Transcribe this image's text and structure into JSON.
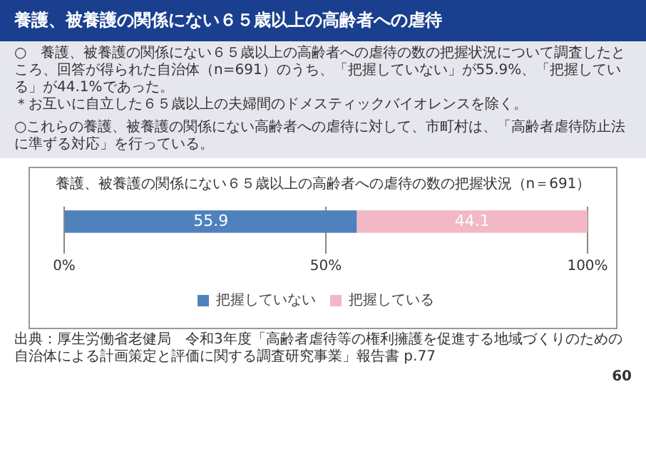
{
  "chart_data": {
    "type": "bar",
    "orientation": "horizontal",
    "stacked": true,
    "title": "養護、被養護の関係にない６５歳以上の高齢者への虐待の数の把握状況（n＝691）",
    "categories": [
      null
    ],
    "series": [
      {
        "name": "把握していない",
        "color": "#4f81bd",
        "values": [
          55.9
        ]
      },
      {
        "name": "把握している",
        "color": "#f2b8c6",
        "values": [
          44.1
        ]
      }
    ],
    "xlim": [
      0,
      100
    ],
    "xticks": [
      {
        "value": 0,
        "label": "0%"
      },
      {
        "value": 50,
        "label": "50%"
      },
      {
        "value": 100,
        "label": "100%"
      }
    ],
    "grid": "x",
    "legend": "bottom",
    "data_labels": true,
    "annotations": [
      "養護、被養護の関係にない６５歳以上の高齢者への虐待",
      "○　養護、被養護の関係にない６５歳以上の高齢者への虐待の数の把握状況について調査したところ、回答が得られた自治体（n=691）のうち、「把握していない」が55.9%、「把握している」が44.1%であった。",
      "＊お互いに自立した６５歳以上の夫婦間のドメスティックバイオレンスを除く。",
      "○これらの養護、被養護の関係にない高齢者への虐待に対して、市町村は、「高齢者虐待防止法に準ずる対応」を行っている。",
      "出典：厚生労働省老健局　令和3年度「高齢者虐待等の権利擁護を促進する地域づくりのための自治体による計画策定と評価に関する調査研究事業」報告書 p.77",
      "60"
    ]
  }
}
